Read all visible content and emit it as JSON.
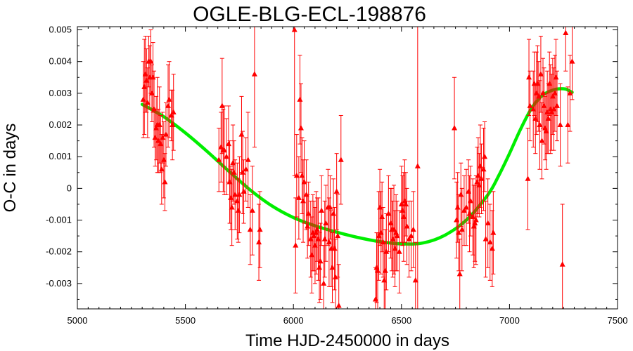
{
  "chart_data": {
    "type": "scatter",
    "title": "OGLE-BLG-ECL-198876",
    "xlabel": "Time HJD-2450000 in days",
    "ylabel": "O-C in days",
    "xlim": [
      5000,
      7500
    ],
    "ylim": [
      -0.0038,
      0.0051
    ],
    "xticks": [
      5000,
      5500,
      6000,
      6500,
      7000,
      7500
    ],
    "xtick_labels": [
      "5000",
      "5500",
      "6000",
      "6500",
      "7000",
      "7500"
    ],
    "yticks": [
      -0.003,
      -0.002,
      -0.001,
      0,
      0.001,
      0.002,
      0.003,
      0.004,
      0.005
    ],
    "ytick_labels": [
      "-0.003",
      "-0.002",
      "-0.001",
      "0",
      "0.001",
      "0.002",
      "0.003",
      "0.004",
      "0.005"
    ],
    "grid": false,
    "series": [
      {
        "kind": "points_with_errorbars",
        "color": "#ff0000",
        "marker": "triangle-up",
        "points": [
          [
            5305,
            0.0028,
            0.0012
          ],
          [
            5310,
            0.0032,
            0.0015
          ],
          [
            5315,
            0.0036,
            0.0012
          ],
          [
            5320,
            0.0034,
            0.001
          ],
          [
            5325,
            0.0027,
            0.0011
          ],
          [
            5330,
            0.004,
            0.0008
          ],
          [
            5335,
            0.0035,
            0.001
          ],
          [
            5340,
            0.004,
            0.001
          ],
          [
            5345,
            0.003,
            0.0009
          ],
          [
            5350,
            0.0035,
            0.0011
          ],
          [
            5355,
            0.0025,
            0.0012
          ],
          [
            5360,
            0.0016,
            0.0009
          ],
          [
            5365,
            0.0019,
            0.001
          ],
          [
            5370,
            0.002,
            0.0015
          ],
          [
            5375,
            0.0015,
            0.001
          ],
          [
            5380,
            0.002,
            0.0012
          ],
          [
            5385,
            0.0014,
            0.0009
          ],
          [
            5390,
            0.0006,
            0.0011
          ],
          [
            5395,
            0.0016,
            0.0008
          ],
          [
            5400,
            0.0009,
            0.0012
          ],
          [
            5405,
            0.0002,
            0.0009
          ],
          [
            5410,
            0.0017,
            0.001
          ],
          [
            5420,
            0.0026,
            0.0013
          ],
          [
            5425,
            0.0028,
            0.0012
          ],
          [
            5435,
            0.0023,
            0.0008
          ],
          [
            5440,
            0.002,
            0.0011
          ],
          [
            5445,
            0.0024,
            0.0012
          ],
          [
            5655,
            0.0009,
            0.001
          ],
          [
            5665,
            0.0013,
            0.0011
          ],
          [
            5670,
            0.0026,
            0.0015
          ],
          [
            5675,
            0.0012,
            0.0013
          ],
          [
            5680,
            0.0012,
            0.0014
          ],
          [
            5690,
            0.001,
            0.0012
          ],
          [
            5700,
            0.0014,
            0.0012
          ],
          [
            5705,
            0.0002,
            0.0013
          ],
          [
            5710,
            -0.0003,
            0.001
          ],
          [
            5715,
            -0.0006,
            0.0012
          ],
          [
            5720,
            0.0008,
            0.0012
          ],
          [
            5725,
            0.0005,
            0.001
          ],
          [
            5730,
            -0.0002,
            0.0011
          ],
          [
            5740,
            -0.0004,
            0.0012
          ],
          [
            5745,
            -0.0007,
            0.001
          ],
          [
            5750,
            -0.0002,
            0.0012
          ],
          [
            5760,
            0.0017,
            0.0012
          ],
          [
            5765,
            0.0005,
            0.0013
          ],
          [
            5770,
            -0.0001,
            0.001
          ],
          [
            5780,
            0.0006,
            0.001
          ],
          [
            5790,
            0.0009,
            0.0015
          ],
          [
            5800,
            -0.0013,
            0.0011
          ],
          [
            5810,
            -0.0007,
            0.0014
          ],
          [
            5820,
            0.0036,
            0.0023
          ],
          [
            5840,
            -0.0017,
            0.0012
          ],
          [
            5845,
            -0.0013,
            0.0012
          ],
          [
            6005,
            0.005,
            0.0046
          ],
          [
            6010,
            -0.0018,
            0.0015
          ],
          [
            6015,
            0.0004,
            0.0013
          ],
          [
            6025,
            -0.0003,
            0.0013
          ],
          [
            6030,
            0.0028,
            0.0014
          ],
          [
            6035,
            0.0019,
            0.0014
          ],
          [
            6040,
            0.0004,
            0.0012
          ],
          [
            6045,
            -0.0004,
            0.0013
          ],
          [
            6050,
            0.0002,
            0.0013
          ],
          [
            6060,
            -0.0002,
            0.0011
          ],
          [
            6065,
            -0.0012,
            0.001
          ],
          [
            6070,
            -0.0008,
            0.001
          ],
          [
            6080,
            -0.0016,
            0.0012
          ],
          [
            6085,
            -0.0021,
            0.0012
          ],
          [
            6090,
            -0.0014,
            0.0012
          ],
          [
            6095,
            -0.0015,
            0.0011
          ],
          [
            6100,
            -0.0018,
            0.0012
          ],
          [
            6105,
            -0.0014,
            0.0013
          ],
          [
            6110,
            -0.0013,
            0.001
          ],
          [
            6115,
            -0.0016,
            0.0013
          ],
          [
            6120,
            -0.0025,
            0.0011
          ],
          [
            6125,
            -0.0023,
            0.0012
          ],
          [
            6130,
            -0.0007,
            0.0011
          ],
          [
            6140,
            -0.003,
            0.0012
          ],
          [
            6145,
            -0.0016,
            0.0012
          ],
          [
            6150,
            -0.0011,
            0.0012
          ],
          [
            6160,
            -0.0006,
            0.0012
          ],
          [
            6165,
            -0.0017,
            0.0014
          ],
          [
            6170,
            -0.0006,
            0.001
          ],
          [
            6175,
            -0.0019,
            0.0012
          ],
          [
            6180,
            -0.0025,
            0.0011
          ],
          [
            6185,
            -0.0008,
            0.0011
          ],
          [
            6190,
            -0.0019,
            0.0013
          ],
          [
            6195,
            -0.0028,
            0.0012
          ],
          [
            6200,
            -0.0001,
            0.0012
          ],
          [
            6205,
            -0.0015,
            0.0013
          ],
          [
            6210,
            -0.0037,
            0.0013
          ],
          [
            6220,
            0.0009,
            0.0014
          ],
          [
            6380,
            -0.0035,
            0.001
          ],
          [
            6385,
            -0.0025,
            0.0011
          ],
          [
            6390,
            -0.0026,
            0.0012
          ],
          [
            6395,
            -0.0015,
            0.0014
          ],
          [
            6400,
            -0.0006,
            0.0012
          ],
          [
            6405,
            -0.0014,
            0.0013
          ],
          [
            6410,
            -0.0009,
            0.0011
          ],
          [
            6415,
            -0.0017,
            0.0011
          ],
          [
            6420,
            -0.0029,
            0.0012
          ],
          [
            6425,
            -0.0026,
            0.0013
          ],
          [
            6430,
            -0.002,
            0.0012
          ],
          [
            6440,
            -0.0008,
            0.0012
          ],
          [
            6450,
            -0.0011,
            0.0011
          ],
          [
            6455,
            -0.0013,
            0.0013
          ],
          [
            6460,
            -0.0016,
            0.0012
          ],
          [
            6465,
            -0.0013,
            0.0014
          ],
          [
            6470,
            -0.0019,
            0.0012
          ],
          [
            6475,
            -0.0014,
            0.0012
          ],
          [
            6480,
            -0.0015,
            0.0011
          ],
          [
            6490,
            -0.002,
            0.0013
          ],
          [
            6500,
            -0.0005,
            0.0012
          ],
          [
            6505,
            -0.0007,
            0.0011
          ],
          [
            6510,
            -0.0009,
            0.0014
          ],
          [
            6515,
            -0.0004,
            0.0013
          ],
          [
            6520,
            -0.0005,
            0.001
          ],
          [
            6525,
            -0.0012,
            0.0012
          ],
          [
            6535,
            -0.0016,
            0.0012
          ],
          [
            6545,
            -0.0015,
            0.0011
          ],
          [
            6555,
            -0.0013,
            0.0012
          ],
          [
            6565,
            -0.0029,
            0.0012
          ],
          [
            6575,
            0.0007,
            0.0046
          ],
          [
            6745,
            0.0019,
            0.0016
          ],
          [
            6755,
            -0.001,
            0.0012
          ],
          [
            6760,
            -0.0006,
            0.0011
          ],
          [
            6765,
            -0.0014,
            0.0012
          ],
          [
            6770,
            -0.0027,
            0.0011
          ],
          [
            6775,
            -0.0002,
            0.001
          ],
          [
            6780,
            -0.0013,
            0.0013
          ],
          [
            6790,
            -0.0007,
            0.0011
          ],
          [
            6800,
            -0.0006,
            0.0012
          ],
          [
            6810,
            -0.0001,
            0.001
          ],
          [
            6815,
            -0.0008,
            0.0012
          ],
          [
            6820,
            -0.0004,
            0.0011
          ],
          [
            6830,
            -0.0009,
            0.0012
          ],
          [
            6835,
            -0.0012,
            0.0013
          ],
          [
            6840,
            -0.0011,
            0.0012
          ],
          [
            6845,
            -0.001,
            0.0014
          ],
          [
            6850,
            0.0002,
            0.0011
          ],
          [
            6855,
            0.0004,
            0.0012
          ],
          [
            6860,
            0.0001,
            0.001
          ],
          [
            6865,
            0.0007,
            0.0013
          ],
          [
            6870,
            0.0003,
            0.0011
          ],
          [
            6880,
            0.0006,
            0.0013
          ],
          [
            6885,
            0.001,
            0.0011
          ],
          [
            6890,
            -0.0016,
            0.0012
          ],
          [
            6900,
            -0.0011,
            0.0014
          ],
          [
            6910,
            -0.0017,
            0.0012
          ],
          [
            6920,
            -0.0019,
            0.0012
          ],
          [
            6925,
            -0.0014,
            0.0013
          ],
          [
            7085,
            0.0003,
            0.0016
          ],
          [
            7090,
            0.0035,
            0.0012
          ],
          [
            7095,
            0.0026,
            0.0011
          ],
          [
            7110,
            0.0025,
            0.0012
          ],
          [
            7115,
            0.0033,
            0.001
          ],
          [
            7120,
            0.0022,
            0.0011
          ],
          [
            7125,
            0.003,
            0.0013
          ],
          [
            7130,
            0.0033,
            0.0012
          ],
          [
            7135,
            0.0029,
            0.0011
          ],
          [
            7140,
            0.002,
            0.0014
          ],
          [
            7145,
            0.0036,
            0.0012
          ],
          [
            7150,
            0.0015,
            0.0012
          ],
          [
            7155,
            0.003,
            0.0011
          ],
          [
            7160,
            0.0026,
            0.0012
          ],
          [
            7165,
            0.0019,
            0.001
          ],
          [
            7170,
            0.0018,
            0.0012
          ],
          [
            7175,
            0.0024,
            0.0013
          ],
          [
            7180,
            0.0022,
            0.0011
          ],
          [
            7185,
            0.0033,
            0.001
          ],
          [
            7190,
            0.0025,
            0.0014
          ],
          [
            7195,
            0.0024,
            0.0012
          ],
          [
            7200,
            0.0029,
            0.0012
          ],
          [
            7205,
            0.0025,
            0.0013
          ],
          [
            7210,
            0.003,
            0.0012
          ],
          [
            7215,
            0.0035,
            0.0012
          ],
          [
            7220,
            0.0026,
            0.0011
          ],
          [
            7235,
            0.002,
            0.0013
          ],
          [
            7245,
            -0.0024,
            0.0019
          ],
          [
            7260,
            0.0049,
            0.0012
          ],
          [
            7270,
            0.002,
            0.0012
          ],
          [
            7280,
            0.003,
            0.0012
          ],
          [
            7290,
            0.004,
            0.0012
          ]
        ]
      },
      {
        "kind": "fit_curve",
        "color": "#00ee00",
        "x": [
          5300,
          5400,
          5500,
          5600,
          5700,
          5800,
          5900,
          6000,
          6100,
          6200,
          6300,
          6400,
          6500,
          6600,
          6700,
          6800,
          6900,
          6950,
          7000,
          7050,
          7100,
          7150,
          7200,
          7230,
          7260,
          7290
        ],
        "y": [
          0.00265,
          0.00226,
          0.00175,
          0.00117,
          0.00055,
          -5e-05,
          -0.00055,
          -0.00092,
          -0.00118,
          -0.00138,
          -0.00155,
          -0.00168,
          -0.00175,
          -0.00172,
          -0.00148,
          -0.001,
          -0.0002,
          0.0004,
          0.0011,
          0.00185,
          0.0025,
          0.00292,
          0.0031,
          0.00314,
          0.00313,
          0.00303
        ]
      }
    ]
  }
}
